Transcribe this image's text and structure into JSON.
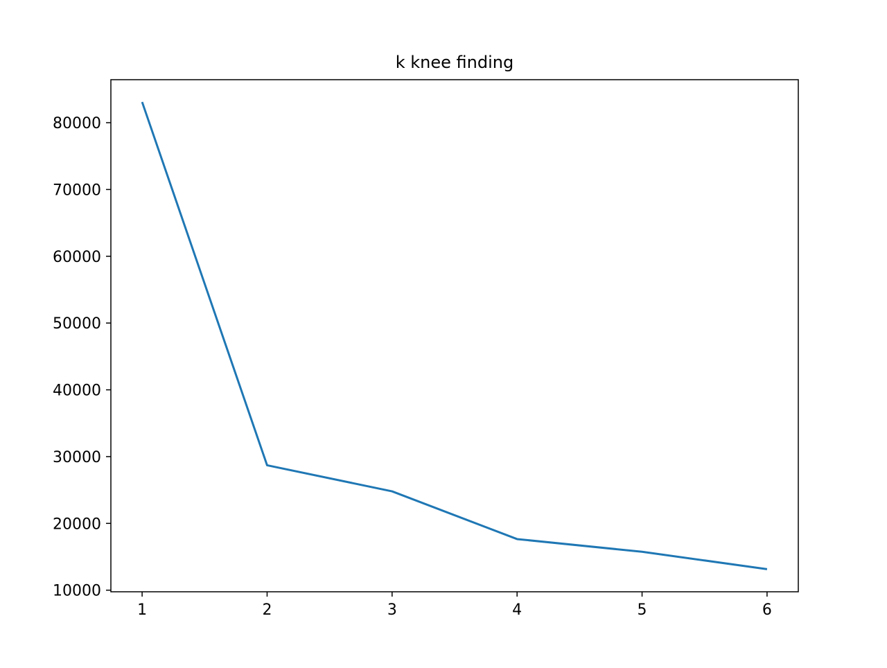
{
  "chart_data": {
    "type": "line",
    "title": "k knee finding",
    "xlabel": "",
    "ylabel": "",
    "x": [
      1,
      2,
      3,
      4,
      5,
      6
    ],
    "series": [
      {
        "values": [
          83100,
          28700,
          24800,
          17650,
          15750,
          13150
        ],
        "color": "#1f77b4"
      }
    ],
    "xticks": [
      1,
      2,
      3,
      4,
      5,
      6
    ],
    "xtick_labels": [
      "1",
      "2",
      "3",
      "4",
      "5",
      "6"
    ],
    "yticks": [
      10000,
      20000,
      30000,
      40000,
      50000,
      60000,
      70000,
      80000
    ],
    "ytick_labels": [
      "10000",
      "20000",
      "30000",
      "40000",
      "50000",
      "60000",
      "70000",
      "80000"
    ],
    "xlim": [
      0.75,
      6.25
    ],
    "ylim": [
      9760,
      86440
    ],
    "grid": false,
    "legend": "none"
  }
}
